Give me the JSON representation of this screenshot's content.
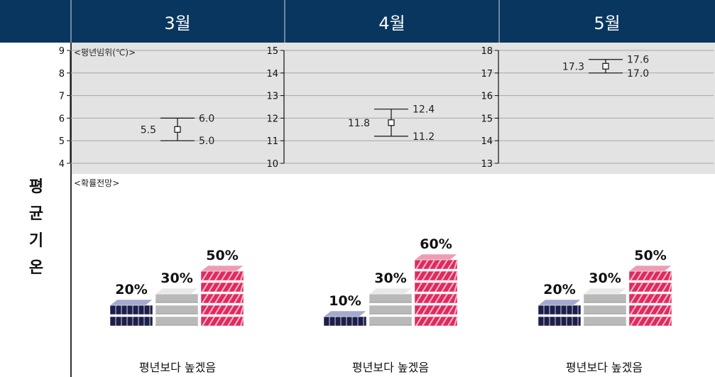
{
  "row_label": [
    "평",
    "균",
    "기",
    "온"
  ],
  "range_label": "<평년범위(℃)>",
  "prob_label": "<확률전망>",
  "colors": {
    "header": "#08365f",
    "below_top": "#a3a9cf",
    "below_side": "#1d1f4a",
    "normal_top": "#e8e8e8",
    "normal_side": "#b9b9b9",
    "above_top": "#ec9db4",
    "above_side": "#e02a5e"
  },
  "chart_data": [
    {
      "type": "errorbar",
      "month": "3월",
      "yticks": [
        4,
        5,
        6,
        7,
        8,
        9
      ],
      "ylim": [
        4,
        9
      ],
      "mean": "5.5",
      "upper": "6.0",
      "lower": "5.0",
      "prob": {
        "below": "20%",
        "normal": "30%",
        "above": "50%"
      },
      "prob_values": {
        "below": 20,
        "normal": 30,
        "above": 50
      },
      "caption": "평년보다 높겠음"
    },
    {
      "type": "errorbar",
      "month": "4월",
      "yticks": [
        10,
        11,
        12,
        13,
        14,
        15
      ],
      "ylim": [
        10,
        15
      ],
      "mean": "11.8",
      "upper": "12.4",
      "lower": "11.2",
      "prob": {
        "below": "10%",
        "normal": "30%",
        "above": "60%"
      },
      "prob_values": {
        "below": 10,
        "normal": 30,
        "above": 60
      },
      "caption": "평년보다 높겠음"
    },
    {
      "type": "errorbar",
      "month": "5월",
      "yticks": [
        13,
        14,
        15,
        16,
        17,
        18
      ],
      "ylim": [
        13,
        18
      ],
      "mean": "17.3",
      "upper": "17.6",
      "lower": "17.0",
      "prob": {
        "below": "20%",
        "normal": "30%",
        "above": "50%"
      },
      "prob_values": {
        "below": 20,
        "normal": 30,
        "above": 50
      },
      "caption": "평년보다 높겠음"
    }
  ]
}
